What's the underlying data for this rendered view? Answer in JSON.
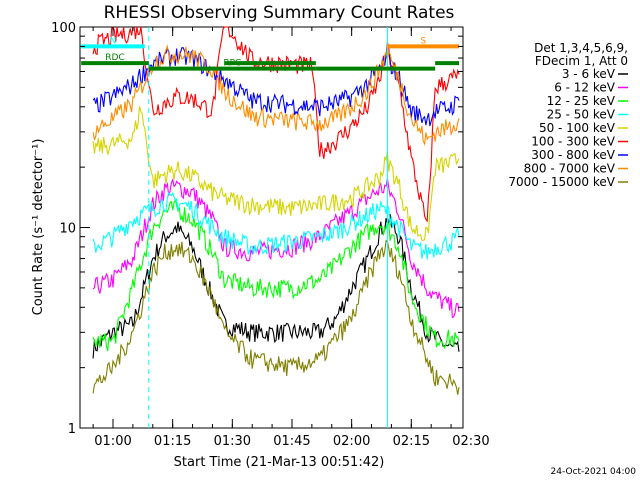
{
  "chart_data": {
    "type": "line",
    "title": "RHESSI Observing Summary Count Rates",
    "xlabel": "Start Time (21-Mar-13 00:51:42)",
    "ylabel": "Count Rate (s⁻¹ detector⁻¹)",
    "yscale": "log",
    "ylim": [
      1,
      100
    ],
    "xlim": [
      "00:51:42",
      "02:28:00"
    ],
    "x_ticks": [
      "01:00",
      "01:15",
      "01:30",
      "01:45",
      "02:00",
      "02:15",
      "02:30"
    ],
    "y_ticks": [
      "1",
      "10",
      "100"
    ],
    "grid": false,
    "legend_header": [
      "Det 1,3,4,5,6,9,",
      "FDecim 1, Att 0"
    ],
    "legend_position": "right",
    "series": [
      {
        "name": "3 - 6 keV",
        "color": "#000000",
        "x": [
          "00:55",
          "01:00",
          "01:05",
          "01:10",
          "01:13",
          "01:16",
          "01:20",
          "01:25",
          "01:28",
          "01:35",
          "01:45",
          "01:52",
          "01:56",
          "02:00",
          "02:04",
          "02:07",
          "02:09",
          "02:12",
          "02:15",
          "02:19",
          "02:21",
          "02:25",
          "02:27"
        ],
        "y": [
          2.5,
          3.0,
          3.3,
          7.0,
          9.0,
          10.0,
          8.0,
          4.5,
          3.3,
          3.0,
          3.0,
          3.0,
          3.5,
          5.0,
          7.0,
          9.5,
          11.0,
          9.0,
          5.0,
          3.0,
          2.8,
          2.5,
          2.4
        ]
      },
      {
        "name": "6 - 12 keV",
        "color": "#ff00ff",
        "x": [
          "00:55",
          "01:00",
          "01:05",
          "01:10",
          "01:13",
          "01:16",
          "01:20",
          "01:25",
          "01:28",
          "01:35",
          "01:45",
          "01:52",
          "01:56",
          "02:00",
          "02:04",
          "02:07",
          "02:09",
          "02:12",
          "02:15",
          "02:19",
          "02:21",
          "02:25",
          "02:27"
        ],
        "y": [
          5.0,
          5.5,
          7.0,
          13.0,
          15.5,
          16.0,
          15.0,
          11.0,
          8.0,
          7.5,
          8.0,
          9.0,
          10.5,
          12.0,
          14.0,
          15.5,
          16.0,
          12.0,
          7.0,
          5.0,
          4.5,
          4.0,
          3.8
        ]
      },
      {
        "name": "12 - 25 keV",
        "color": "#00ff00",
        "x": [
          "00:55",
          "01:00",
          "01:05",
          "01:10",
          "01:13",
          "01:16",
          "01:20",
          "01:25",
          "01:28",
          "01:35",
          "01:45",
          "01:52",
          "01:56",
          "02:00",
          "02:04",
          "02:07",
          "02:09",
          "02:12",
          "02:15",
          "02:19",
          "02:21",
          "02:25",
          "02:27"
        ],
        "y": [
          2.7,
          2.7,
          5.0,
          10.0,
          12.0,
          12.5,
          11.0,
          7.5,
          5.5,
          5.0,
          5.0,
          5.5,
          6.5,
          8.0,
          9.5,
          10.5,
          10.0,
          8.0,
          4.5,
          3.2,
          2.8,
          2.8,
          2.7
        ]
      },
      {
        "name": "25 - 50 keV",
        "color": "#00ffff",
        "x": [
          "00:55",
          "01:00",
          "01:05",
          "01:10",
          "01:13",
          "01:16",
          "01:20",
          "01:25",
          "01:28",
          "01:35",
          "01:45",
          "01:52",
          "01:56",
          "02:00",
          "02:04",
          "02:07",
          "02:09",
          "02:12",
          "02:15",
          "02:19",
          "02:21",
          "02:25",
          "02:27"
        ],
        "y": [
          8.0,
          9.0,
          11.0,
          12.5,
          13.5,
          13.5,
          12.5,
          10.0,
          9.0,
          8.0,
          8.5,
          9.0,
          9.5,
          10.5,
          11.5,
          12.5,
          12.0,
          10.0,
          8.0,
          7.5,
          8.0,
          8.5,
          9.0
        ]
      },
      {
        "name": "50 - 100 keV",
        "color": "#d4d400",
        "x": [
          "00:55",
          "01:00",
          "01:05",
          "01:07",
          "01:10",
          "01:13",
          "01:16",
          "01:20",
          "01:25",
          "01:28",
          "01:35",
          "01:45",
          "01:52",
          "01:56",
          "02:00",
          "02:04",
          "02:07",
          "02:09",
          "02:12",
          "02:15",
          "02:19",
          "02:21",
          "02:25",
          "02:27"
        ],
        "y": [
          25,
          26,
          28,
          40,
          17,
          18.5,
          19.5,
          18,
          15,
          14,
          13,
          12.5,
          13,
          13.5,
          14,
          16,
          18,
          22,
          16,
          10,
          9,
          20,
          21,
          22
        ]
      },
      {
        "name": "100 - 300 keV",
        "color": "#ff0000",
        "x": [
          "00:55",
          "01:00",
          "01:05",
          "01:07",
          "01:10",
          "01:13",
          "01:16",
          "01:20",
          "01:25",
          "01:28",
          "01:35",
          "01:45",
          "01:50",
          "01:52",
          "01:56",
          "02:00",
          "02:04",
          "02:07",
          "02:09",
          "02:12",
          "02:15",
          "02:19",
          "02:21",
          "02:25",
          "02:27"
        ],
        "y": [
          80,
          90,
          95,
          100,
          38,
          42,
          45,
          44,
          38,
          105,
          68,
          65,
          64,
          24,
          27,
          32,
          40,
          55,
          77,
          50,
          22,
          10,
          50,
          55,
          58
        ]
      },
      {
        "name": "300 - 800 keV",
        "color": "#0000ff",
        "x": [
          "00:55",
          "01:00",
          "01:05",
          "01:07",
          "01:10",
          "01:13",
          "01:16",
          "01:20",
          "01:25",
          "01:28",
          "01:35",
          "01:45",
          "01:52",
          "01:56",
          "02:00",
          "02:04",
          "02:07",
          "02:09",
          "02:12",
          "02:15",
          "02:19",
          "02:21",
          "02:25",
          "02:27"
        ],
        "y": [
          40,
          45,
          52,
          58,
          65,
          70,
          72,
          70,
          60,
          55,
          43,
          41,
          40,
          42,
          45,
          52,
          62,
          70,
          55,
          38,
          35,
          38,
          40,
          43
        ]
      },
      {
        "name": "800 - 7000 keV",
        "color": "#ff8c00",
        "x": [
          "00:55",
          "01:00",
          "01:05",
          "01:07",
          "01:10",
          "01:13",
          "01:16",
          "01:20",
          "01:25",
          "01:28",
          "01:35",
          "01:45",
          "01:52",
          "01:56",
          "02:00",
          "02:04",
          "02:07",
          "02:09",
          "02:12",
          "02:15",
          "02:19",
          "02:21",
          "02:25",
          "02:27"
        ],
        "y": [
          30,
          35,
          42,
          50,
          66,
          72,
          74,
          72,
          62,
          48,
          36,
          34,
          33,
          35,
          40,
          48,
          62,
          75,
          55,
          35,
          27,
          30,
          32,
          35
        ]
      },
      {
        "name": "7000 - 15000 keV",
        "color": "#808000",
        "x": [
          "00:55",
          "01:00",
          "01:05",
          "01:10",
          "01:13",
          "01:16",
          "01:20",
          "01:25",
          "01:28",
          "01:35",
          "01:45",
          "01:52",
          "01:56",
          "02:00",
          "02:04",
          "02:07",
          "02:09",
          "02:12",
          "02:15",
          "02:19",
          "02:21",
          "02:25",
          "02:27"
        ],
        "y": [
          1.6,
          2.0,
          3.0,
          6.0,
          7.5,
          8.0,
          7.0,
          4.5,
          3.0,
          2.2,
          2.0,
          2.2,
          2.8,
          3.5,
          5.5,
          7.5,
          8.0,
          6.0,
          3.5,
          2.2,
          1.8,
          1.7,
          1.6
        ]
      }
    ],
    "flags": [
      {
        "label": "N",
        "color": "#00ffff",
        "y": 80,
        "x_start": "00:52",
        "x_end": "01:08"
      },
      {
        "label": "S",
        "color": "#ff8c00",
        "y": 80,
        "x_start": "02:09",
        "x_end": "02:27"
      },
      {
        "label": "RDC",
        "color": "#008000",
        "y": 66,
        "x_start": "00:52",
        "x_end": "01:09"
      },
      {
        "label": "RPC",
        "color": "#008000",
        "y": 62,
        "x_start": "01:09",
        "x_end": "01:51"
      },
      {
        "label": "",
        "color": "#008000",
        "y": 66,
        "x_start": "01:28",
        "x_end": "01:51"
      },
      {
        "label": "",
        "color": "#008000",
        "y": 62,
        "x_start": "01:51",
        "x_end": "02:21"
      },
      {
        "label": "",
        "color": "#008000",
        "y": 66,
        "x_start": "02:21",
        "x_end": "02:27"
      }
    ],
    "vertical_markers": [
      {
        "x": "01:09",
        "color": "#00ffff",
        "style": "dashed"
      },
      {
        "x": "02:09",
        "color": "#00ffff",
        "style": "solid"
      }
    ]
  },
  "footer_date": "24-Oct-2021 04:00"
}
